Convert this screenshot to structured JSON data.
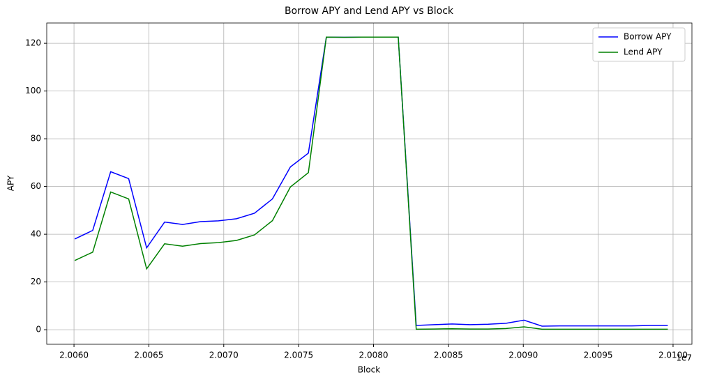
{
  "chart_data": {
    "type": "line",
    "title": "Borrow APY and Lend APY vs Block",
    "x_label": "Block",
    "y_label": "APY",
    "x_offset_label": "1e7",
    "x": [
      2.006005,
      2.006125,
      2.006245,
      2.006365,
      2.006485,
      2.006605,
      2.006725,
      2.006845,
      2.006965,
      2.007085,
      2.007205,
      2.007325,
      2.007445,
      2.007565,
      2.007685,
      2.007805,
      2.007925,
      2.008045,
      2.008165,
      2.008285,
      2.008405,
      2.008525,
      2.008645,
      2.008765,
      2.008885,
      2.009005,
      2.009125,
      2.009245,
      2.009365,
      2.009485,
      2.009605,
      2.009725,
      2.009845,
      2.009965
    ],
    "series": [
      {
        "name": "Borrow APY",
        "color": "#0000ff",
        "values": [
          38.0,
          41.6,
          66.2,
          63.3,
          34.3,
          45.1,
          44.1,
          45.3,
          45.6,
          46.5,
          48.8,
          54.8,
          68.2,
          74.0,
          122.6,
          122.5,
          122.6,
          122.6,
          122.6,
          1.8,
          2.1,
          2.4,
          2.1,
          2.3,
          2.7,
          4.0,
          1.5,
          1.6,
          1.6,
          1.6,
          1.6,
          1.6,
          1.8,
          1.8
        ]
      },
      {
        "name": "Lend APY",
        "color": "#008000",
        "values": [
          29.0,
          32.5,
          57.7,
          54.8,
          25.5,
          36.0,
          35.0,
          36.1,
          36.5,
          37.4,
          39.7,
          45.7,
          59.8,
          65.8,
          122.6,
          122.5,
          122.6,
          122.6,
          122.6,
          0.2,
          0.3,
          0.4,
          0.3,
          0.3,
          0.5,
          1.2,
          0.2,
          0.2,
          0.2,
          0.2,
          0.2,
          0.2,
          0.2,
          0.2
        ]
      }
    ],
    "xlim": [
      2.005818,
      2.010126
    ],
    "ylim": [
      -6.1,
      128.5
    ],
    "xticks": [
      {
        "value": 2.006,
        "label": "2.0060"
      },
      {
        "value": 2.0065,
        "label": "2.0065"
      },
      {
        "value": 2.007,
        "label": "2.0070"
      },
      {
        "value": 2.0075,
        "label": "2.0075"
      },
      {
        "value": 2.008,
        "label": "2.0080"
      },
      {
        "value": 2.0085,
        "label": "2.0085"
      },
      {
        "value": 2.009,
        "label": "2.0090"
      },
      {
        "value": 2.0095,
        "label": "2.0095"
      },
      {
        "value": 2.01,
        "label": "2.0100"
      }
    ],
    "yticks": [
      0,
      20,
      40,
      60,
      80,
      100,
      120
    ],
    "grid": true,
    "legend": "upper right"
  }
}
